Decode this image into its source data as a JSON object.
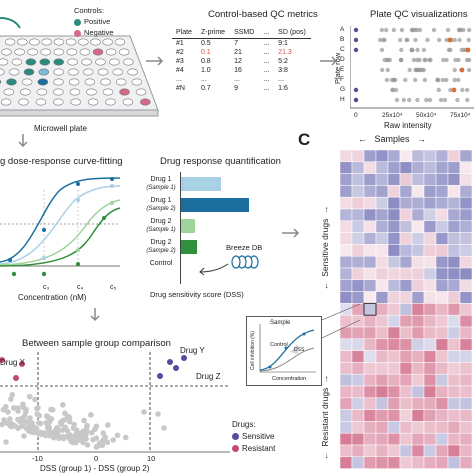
{
  "controls": {
    "title": "Controls:",
    "positive": "Positive",
    "negative": "Negative",
    "positive_color": "#2b8a7e",
    "negative_color": "#d46a87"
  },
  "microwell": {
    "label": "Microwell plate"
  },
  "qc": {
    "title": "Control-based QC metrics",
    "headers": [
      "Plate",
      "Z-prime",
      "SSMD",
      "...",
      "SD (pos)"
    ],
    "rows": [
      [
        "#1",
        "0.5",
        "7",
        "...",
        "9:1"
      ],
      [
        "#2",
        "0.1",
        "21",
        "...",
        "21.3"
      ],
      [
        "#3",
        "0.8",
        "12",
        "...",
        "5:2"
      ],
      [
        "#4",
        "1.0",
        "16",
        "...",
        "3:8"
      ],
      [
        "...",
        "...",
        "...",
        "...",
        "..."
      ],
      [
        "#N",
        "0.7",
        "9",
        "...",
        "1:6"
      ]
    ],
    "highlight_row": 1,
    "highlight_color": "#d9534f"
  },
  "plate_qc": {
    "title": "Plate QC visualizations",
    "ylabel": "Plate row",
    "xlabel": "Raw intensity",
    "rows": [
      "A",
      "B",
      "C",
      "D",
      "E",
      "F",
      "G",
      "H"
    ],
    "ticks": [
      "0",
      "25x10⁴",
      "50x10⁴",
      "75x10⁴"
    ]
  },
  "curve": {
    "title": "g dose-response curve-fitting",
    "xlabel": "Concentration (nM)",
    "ticks": [
      "c₃",
      "c₄",
      "c₅"
    ]
  },
  "quant": {
    "title": "Drug response quantification",
    "bars": [
      {
        "label": "Drug 1",
        "sub": "(Sample 1)",
        "value": 20,
        "color": "#a8d1e6"
      },
      {
        "label": "Drug 1",
        "sub": "(Sample 2)",
        "value": 34,
        "color": "#1b6e9e"
      },
      {
        "label": "Drug 2",
        "sub": "(Sample 1)",
        "value": 7,
        "color": "#9fd49a"
      },
      {
        "label": "Drug 2",
        "sub": "(Sample 2)",
        "value": 8,
        "color": "#2f8f3c"
      },
      {
        "label": "Control",
        "sub": "",
        "value": 0,
        "color": "#cccccc"
      }
    ],
    "db": "Breeze DB",
    "xlabel": "Drug sensitivity score (DSS)"
  },
  "group": {
    "title": "Between sample group comparison",
    "xlabel": "DSS (group 1) - DSS (group 2)",
    "ticks": [
      "-10",
      "0",
      "10"
    ],
    "drug_x": "Drug X",
    "drug_y": "Drug Y",
    "drug_z": "Drug Z",
    "legend_title": "Drugs:",
    "sensitive": "Sensitive",
    "resistant": "Resistant",
    "sensitive_color": "#5b4a9b",
    "resistant_color": "#c14a6e"
  },
  "panel_c": {
    "letter": "C",
    "samples": "Samples",
    "sensitive": "Sensitive drugs",
    "resistant": "Resistant drugs",
    "inset_sample": "Sample",
    "inset_control": "Control",
    "inset_dss": "DSS",
    "inset_y": "Cell inhibition (%)",
    "inset_x": "Concentration"
  }
}
